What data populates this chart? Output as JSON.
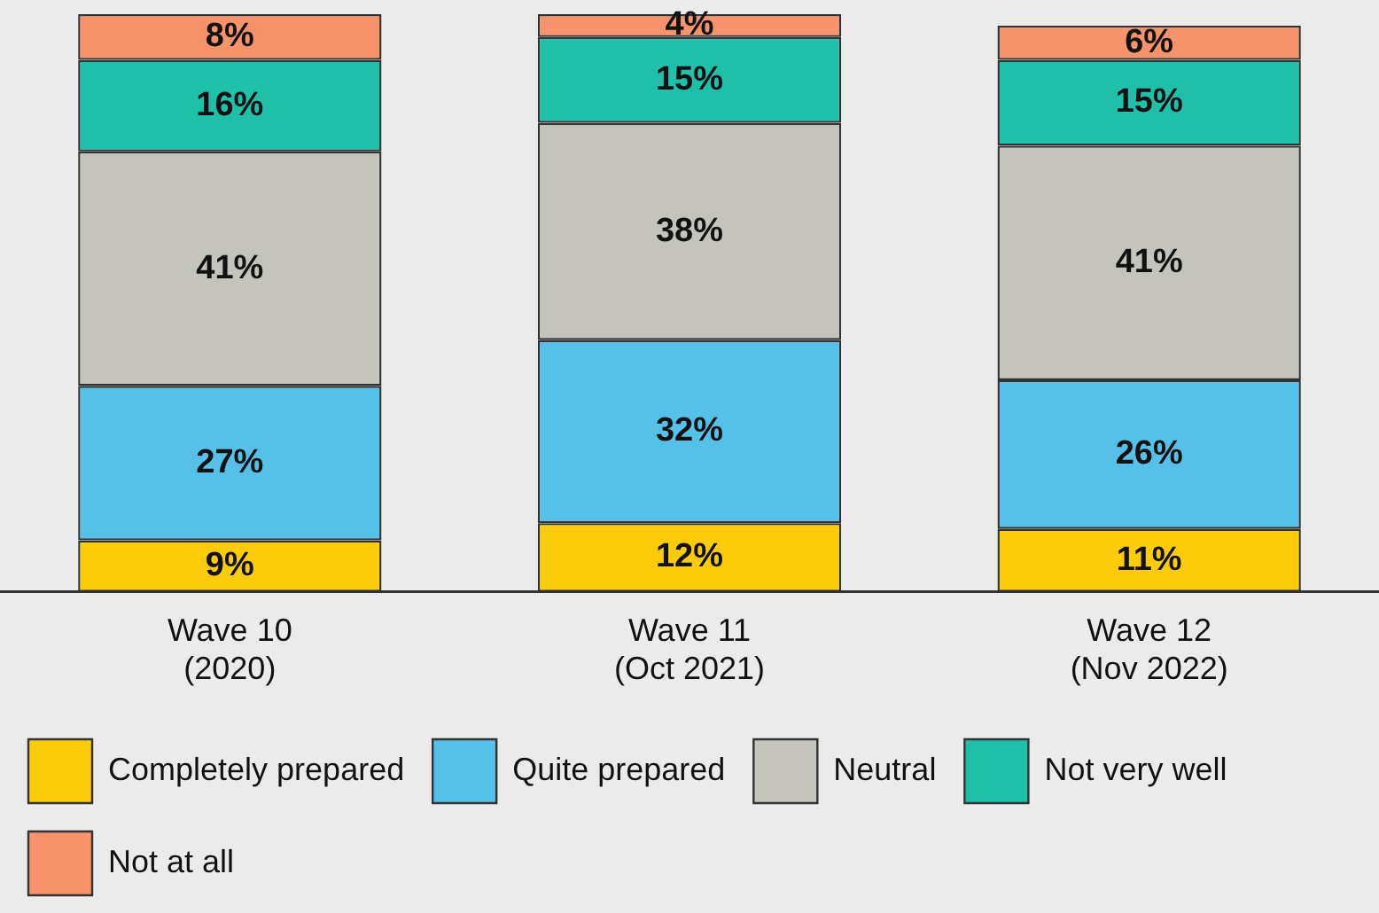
{
  "chart_data": {
    "type": "bar",
    "stacked": true,
    "categories": [
      "Wave 10\n(2020)",
      "Wave 11\n(Oct 2021)",
      "Wave 12\n(Nov 2022)"
    ],
    "ylim": [
      0,
      101
    ],
    "legend": "bottom",
    "grid": false,
    "tick_labels": "x",
    "series": [
      {
        "name": "Completely prepared",
        "color": "#fccc0a",
        "values": [
          9,
          12,
          11
        ],
        "value_labels": [
          "9%",
          "12%",
          "11%"
        ]
      },
      {
        "name": "Quite prepared",
        "color": "#56c1e8",
        "values": [
          27,
          32,
          26
        ],
        "value_labels": [
          "27%",
          "32%",
          "26%"
        ]
      },
      {
        "name": "Neutral",
        "color": "#c4c4bc",
        "values": [
          41,
          38,
          41
        ],
        "value_labels": [
          "41%",
          "38%",
          "41%"
        ]
      },
      {
        "name": "Not very well",
        "color": "#1fbfa8",
        "values": [
          16,
          15,
          15
        ],
        "value_labels": [
          "16%",
          "15%",
          "15%"
        ]
      },
      {
        "name": "Not at all",
        "color": "#f7936a",
        "values": [
          8,
          4,
          6
        ],
        "value_labels": [
          "8%",
          "4%",
          "6%"
        ]
      }
    ]
  }
}
